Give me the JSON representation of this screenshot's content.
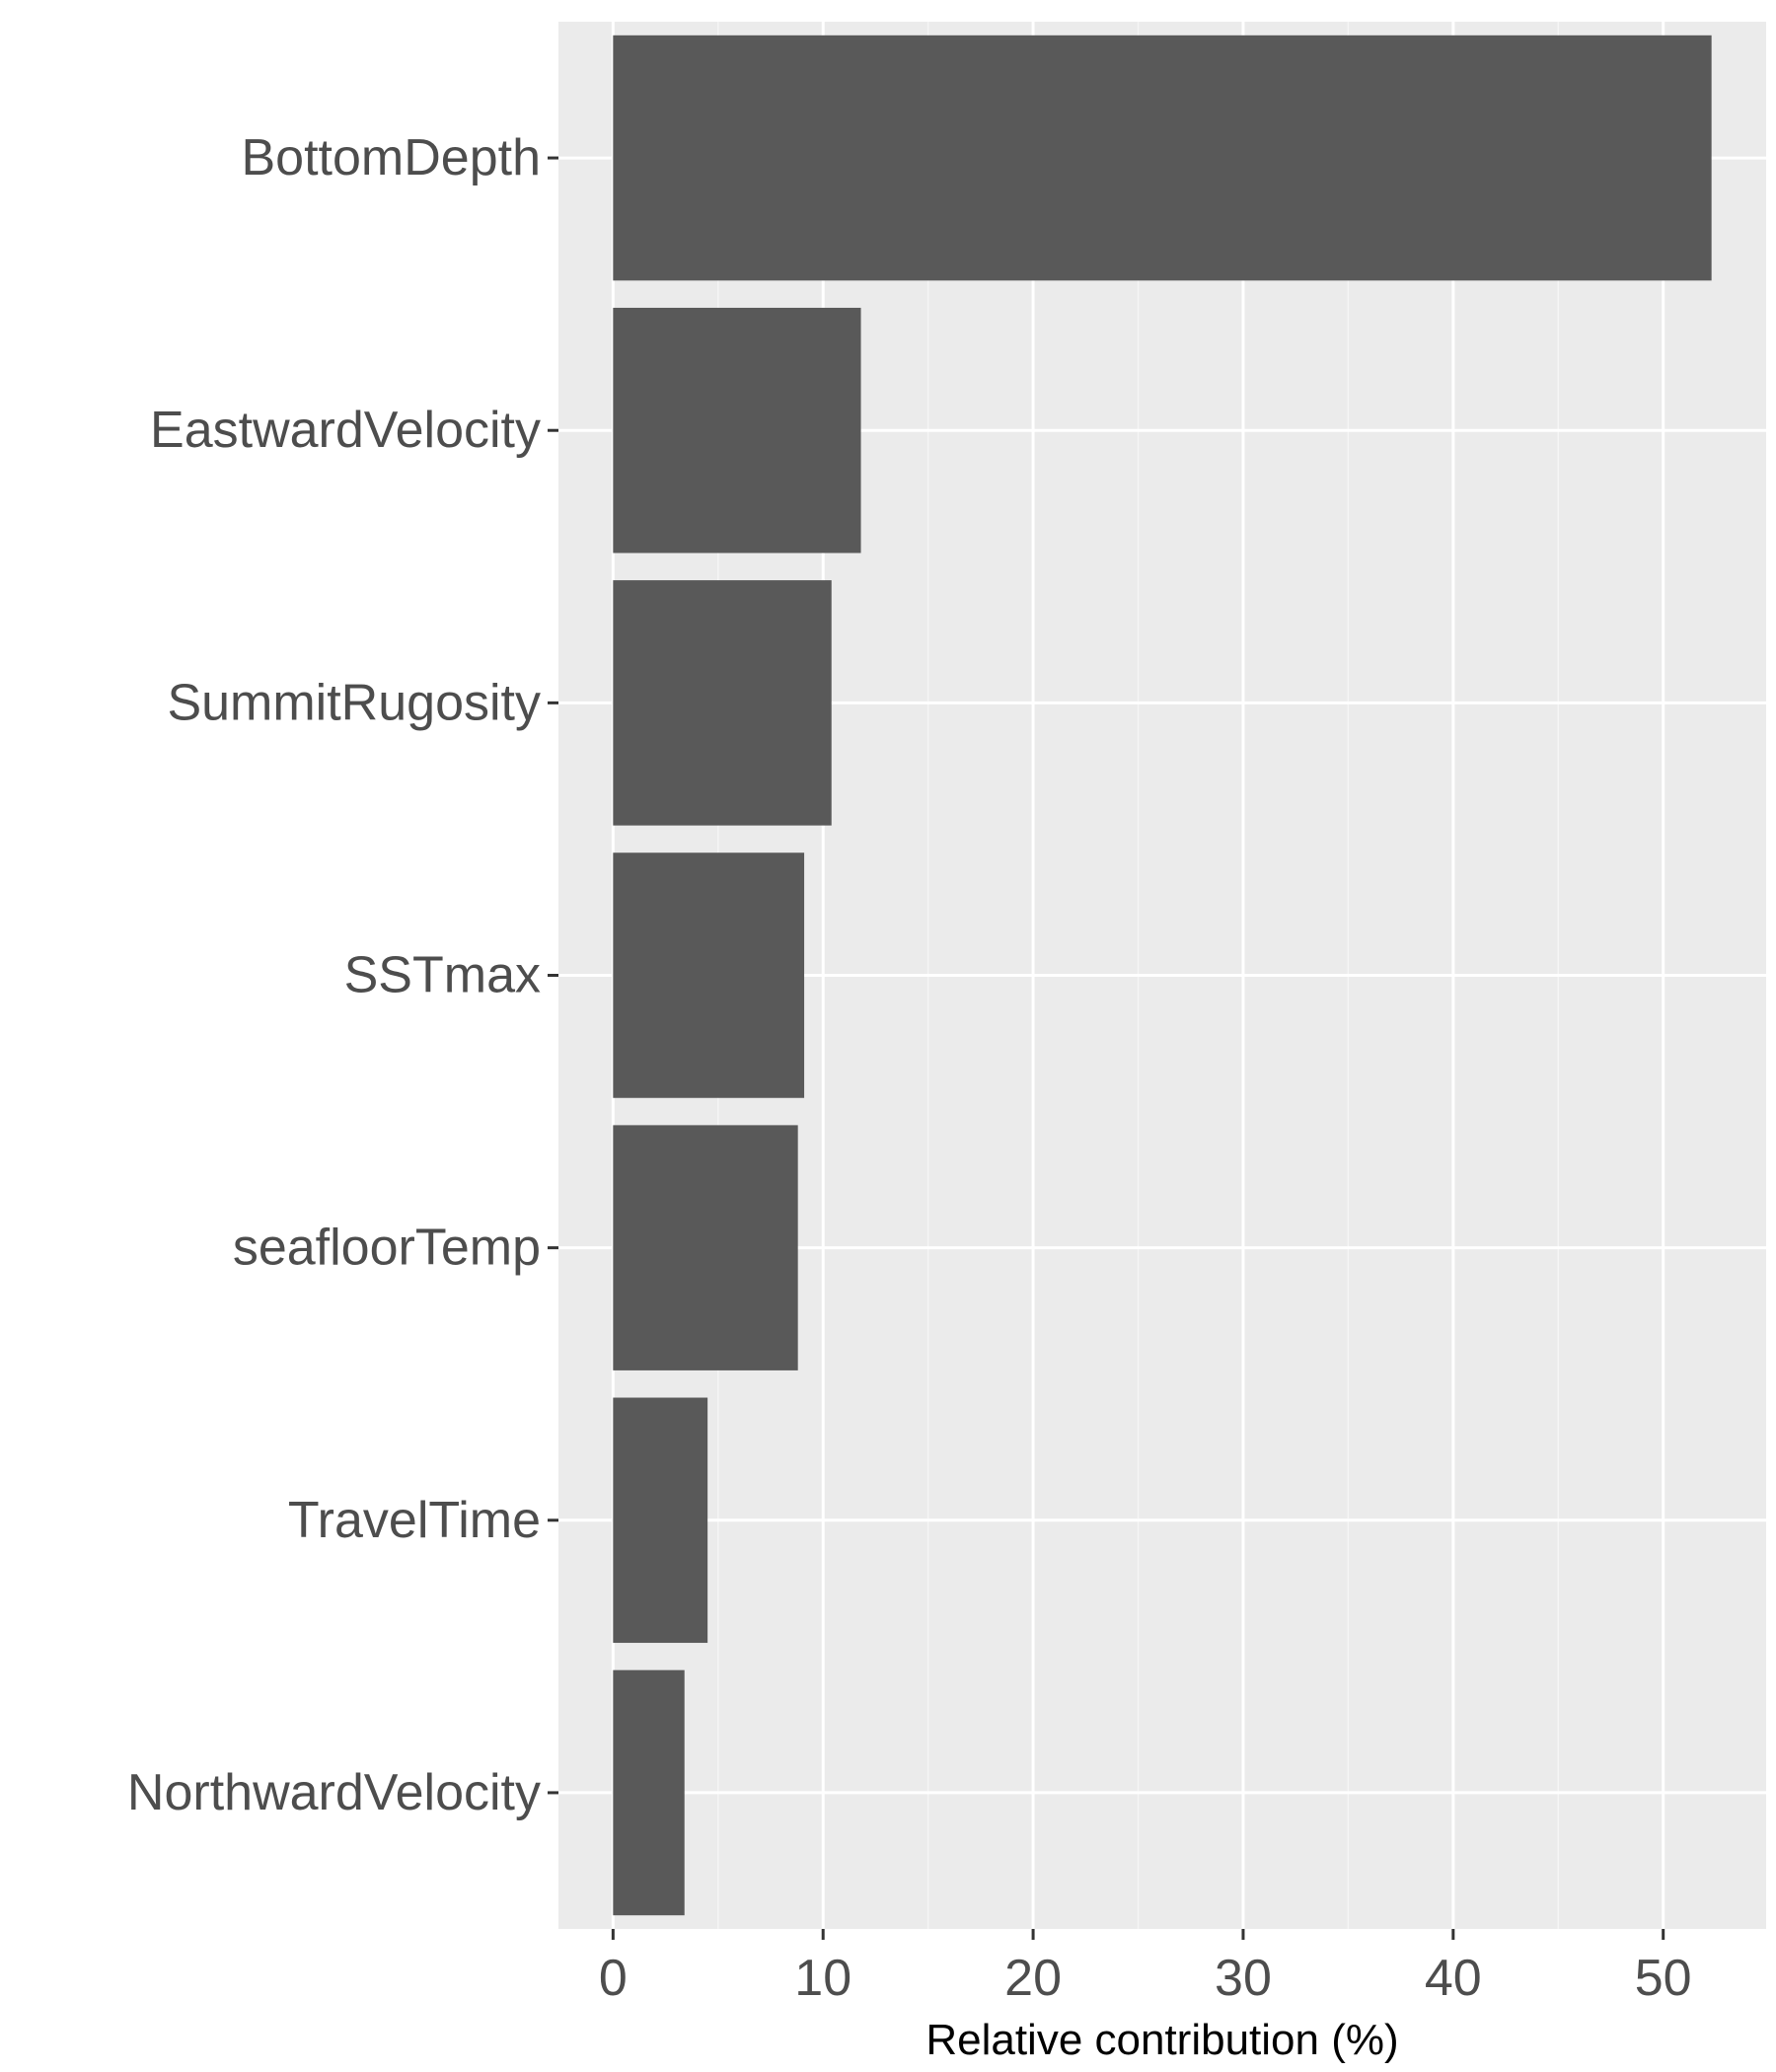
{
  "chart_data": {
    "type": "bar",
    "orientation": "horizontal",
    "categories": [
      "BottomDepth",
      "EastwardVelocity",
      "SummitRugosity",
      "SSTmax",
      "seafloorTemp",
      "TravelTime",
      "NorthwardVelocity"
    ],
    "values": [
      52.3,
      11.8,
      10.4,
      9.1,
      8.8,
      4.5,
      3.4
    ],
    "x_ticks": [
      "0",
      "10",
      "20",
      "30",
      "40",
      "50"
    ],
    "x_tick_values": [
      0,
      10,
      20,
      30,
      40,
      50
    ],
    "xlim": [
      -2.6,
      54.9
    ],
    "xlabel": "Relative contribution (%)",
    "ylabel": "",
    "title": "",
    "grid": true,
    "legend": "none"
  },
  "colors": {
    "bar": "#595959",
    "panel_background": "#EBEBEB",
    "grid_major": "#FFFFFF",
    "grid_minor": "#F5F5F5",
    "tick_mark": "#333333",
    "tick_label": "#4D4D4D",
    "axis_title": "#000000"
  }
}
